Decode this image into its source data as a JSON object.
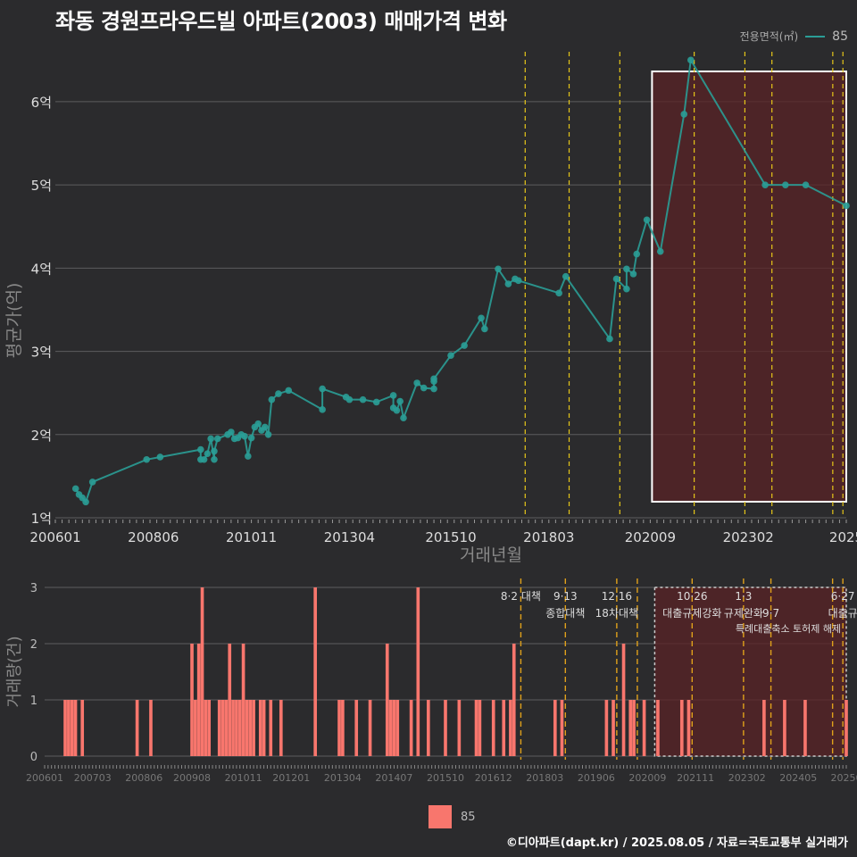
{
  "title": "좌동 경원프라우드빌 아파트(2003) 매매가격 변화",
  "legend": {
    "title": "전용면적(㎡)",
    "series": "85"
  },
  "footer": "©디아파트(dapt.kr) / 2025.08.05 / 자료=국토교통부 실거래가",
  "colors": {
    "line": "#2a9d96",
    "bar": "#f8766d",
    "policy_line": "#e6c619",
    "policy_line_bottom": "#e0a11b",
    "highlight": "#5a2325"
  },
  "chart_data": [
    {
      "type": "line",
      "ylabel": "평균가(억)",
      "xlabel": "거래년월",
      "ylim": [
        1,
        6.6
      ],
      "yticks": [
        1,
        2,
        3,
        4,
        5,
        6
      ],
      "ytick_labels": [
        "1억",
        "2억",
        "3억",
        "4억",
        "5억",
        "6억"
      ],
      "xlim": [
        "2006-01",
        "2025-07"
      ],
      "xticks": [
        "2006-01",
        "2008-06",
        "2010-11",
        "2013-04",
        "2015-10",
        "2018-03",
        "2020-09",
        "2023-02",
        "2025-07"
      ],
      "xtick_labels": [
        "200601",
        "200806",
        "201011",
        "201304",
        "201510",
        "201803",
        "202009",
        "202302",
        "2025"
      ],
      "policy_lines": [
        "2017-08",
        "2018-09",
        "2019-12",
        "2021-10",
        "2023-01",
        "2023-09",
        "2025-03",
        "2025-06"
      ],
      "highlight_range": [
        "2020-09",
        "2025-07"
      ],
      "series": [
        {
          "name": "85",
          "points": [
            [
              "2006-07",
              1.35
            ],
            [
              "2006-08",
              1.28
            ],
            [
              "2006-09",
              1.24
            ],
            [
              "2006-10",
              1.19
            ],
            [
              "2006-12",
              1.43
            ],
            [
              "2008-04",
              1.7
            ],
            [
              "2008-08",
              1.73
            ],
            [
              "2009-08",
              1.82
            ],
            [
              "2009-08",
              1.7
            ],
            [
              "2009-09",
              1.7
            ],
            [
              "2009-10",
              1.77
            ],
            [
              "2009-11",
              1.95
            ],
            [
              "2009-12",
              1.7
            ],
            [
              "2009-12",
              1.8
            ],
            [
              "2010-01",
              1.95
            ],
            [
              "2010-04",
              2.0
            ],
            [
              "2010-05",
              2.03
            ],
            [
              "2010-06",
              1.95
            ],
            [
              "2010-07",
              1.96
            ],
            [
              "2010-08",
              2.0
            ],
            [
              "2010-09",
              1.98
            ],
            [
              "2010-10",
              1.74
            ],
            [
              "2010-11",
              1.96
            ],
            [
              "2010-12",
              2.09
            ],
            [
              "2011-01",
              2.13
            ],
            [
              "2011-02",
              2.05
            ],
            [
              "2011-03",
              2.09
            ],
            [
              "2011-04",
              2.0
            ],
            [
              "2011-05",
              2.42
            ],
            [
              "2011-07",
              2.49
            ],
            [
              "2011-10",
              2.53
            ],
            [
              "2012-08",
              2.3
            ],
            [
              "2012-08",
              2.55
            ],
            [
              "2013-03",
              2.45
            ],
            [
              "2013-04",
              2.42
            ],
            [
              "2013-08",
              2.42
            ],
            [
              "2013-12",
              2.39
            ],
            [
              "2014-05",
              2.47
            ],
            [
              "2014-05",
              2.32
            ],
            [
              "2014-06",
              2.29
            ],
            [
              "2014-07",
              2.4
            ],
            [
              "2014-08",
              2.2
            ],
            [
              "2014-12",
              2.62
            ],
            [
              "2015-02",
              2.56
            ],
            [
              "2015-05",
              2.55
            ],
            [
              "2015-05",
              2.64
            ],
            [
              "2015-05",
              2.67
            ],
            [
              "2015-10",
              2.95
            ],
            [
              "2016-02",
              3.07
            ],
            [
              "2016-07",
              3.4
            ],
            [
              "2016-08",
              3.27
            ],
            [
              "2016-12",
              3.99
            ],
            [
              "2017-03",
              3.81
            ],
            [
              "2017-05",
              3.87
            ],
            [
              "2017-06",
              3.85
            ],
            [
              "2018-06",
              3.7
            ],
            [
              "2018-08",
              3.9
            ],
            [
              "2019-09",
              3.15
            ],
            [
              "2019-11",
              3.87
            ],
            [
              "2020-02",
              3.75
            ],
            [
              "2020-02",
              3.99
            ],
            [
              "2020-04",
              3.93
            ],
            [
              "2020-05",
              4.17
            ],
            [
              "2020-08",
              4.58
            ],
            [
              "2020-12",
              4.2
            ],
            [
              "2021-07",
              5.85
            ],
            [
              "2021-09",
              6.5
            ],
            [
              "2023-07",
              5.0
            ],
            [
              "2024-01",
              5.0
            ],
            [
              "2024-07",
              5.0
            ],
            [
              "2025-07",
              4.75
            ]
          ]
        }
      ]
    },
    {
      "type": "bar",
      "ylabel": "거래량(건)",
      "ylim": [
        0,
        3
      ],
      "yticks": [
        0,
        1,
        2,
        3
      ],
      "xlim": [
        "2006-01",
        "2025-07"
      ],
      "xticks": [
        "2006-01",
        "2007-03",
        "2008-06",
        "2009-08",
        "2010-11",
        "2012-01",
        "2013-04",
        "2014-07",
        "2015-10",
        "2016-12",
        "2018-03",
        "2019-06",
        "2020-09",
        "2021-11",
        "2023-02",
        "2024-05",
        "2025-07"
      ],
      "xtick_labels": [
        "200601",
        "200703",
        "200806",
        "200908",
        "201011",
        "201201",
        "201304",
        "201407",
        "201510",
        "201612",
        "201803",
        "201906",
        "202009",
        "202111",
        "202302",
        "202405",
        "20250"
      ],
      "policy_lines": [
        "2017-08",
        "2018-09",
        "2019-12",
        "2020-06",
        "2021-10",
        "2023-01",
        "2023-09",
        "2025-03",
        "2025-06"
      ],
      "policy_labels": [
        {
          "date": "2017-08",
          "line1": "8·2 대책",
          "line2": ""
        },
        {
          "date": "2018-09",
          "line1": "9·13",
          "line2": "종합대책"
        },
        {
          "date": "2019-12",
          "line1": "12·16",
          "line2": "18차대책"
        },
        {
          "date": "2021-10",
          "line1": "10·26",
          "line2": "대출규제강화"
        },
        {
          "date": "2023-01",
          "line1": "1·3",
          "line2": "규제완화"
        },
        {
          "date": "2023-09",
          "line1": "",
          "line2": "9·7"
        },
        {
          "date": "2025-06",
          "line1": "6·27",
          "line2": "대출규"
        }
      ],
      "policy_label_line3": "특례대출축소 토허제 해제",
      "highlight_range": [
        "2020-09",
        "2025-07"
      ],
      "series": [
        {
          "name": "85",
          "bars": [
            [
              "2006-07",
              1
            ],
            [
              "2006-08",
              1
            ],
            [
              "2006-09",
              1
            ],
            [
              "2006-10",
              1
            ],
            [
              "2006-12",
              1
            ],
            [
              "2008-04",
              1
            ],
            [
              "2008-08",
              1
            ],
            [
              "2009-08",
              2
            ],
            [
              "2009-09",
              1
            ],
            [
              "2009-10",
              2
            ],
            [
              "2009-11",
              3
            ],
            [
              "2009-12",
              1
            ],
            [
              "2010-01",
              1
            ],
            [
              "2010-04",
              1
            ],
            [
              "2010-05",
              1
            ],
            [
              "2010-06",
              1
            ],
            [
              "2010-07",
              2
            ],
            [
              "2010-08",
              1
            ],
            [
              "2010-09",
              1
            ],
            [
              "2010-10",
              1
            ],
            [
              "2010-11",
              2
            ],
            [
              "2010-12",
              1
            ],
            [
              "2011-01",
              1
            ],
            [
              "2011-02",
              1
            ],
            [
              "2011-04",
              1
            ],
            [
              "2011-05",
              1
            ],
            [
              "2011-07",
              1
            ],
            [
              "2011-10",
              1
            ],
            [
              "2012-08",
              3
            ],
            [
              "2013-03",
              1
            ],
            [
              "2013-04",
              1
            ],
            [
              "2013-08",
              1
            ],
            [
              "2013-12",
              1
            ],
            [
              "2014-05",
              2
            ],
            [
              "2014-06",
              1
            ],
            [
              "2014-07",
              1
            ],
            [
              "2014-08",
              1
            ],
            [
              "2014-12",
              1
            ],
            [
              "2015-02",
              3
            ],
            [
              "2015-05",
              1
            ],
            [
              "2015-10",
              1
            ],
            [
              "2016-02",
              1
            ],
            [
              "2016-07",
              1
            ],
            [
              "2016-08",
              1
            ],
            [
              "2016-12",
              1
            ],
            [
              "2017-03",
              1
            ],
            [
              "2017-05",
              1
            ],
            [
              "2017-06",
              2
            ],
            [
              "2018-06",
              1
            ],
            [
              "2018-08",
              1
            ],
            [
              "2019-09",
              1
            ],
            [
              "2019-11",
              1
            ],
            [
              "2020-02",
              2
            ],
            [
              "2020-04",
              1
            ],
            [
              "2020-05",
              1
            ],
            [
              "2020-08",
              1
            ],
            [
              "2020-12",
              1
            ],
            [
              "2021-07",
              1
            ],
            [
              "2021-09",
              1
            ],
            [
              "2023-07",
              1
            ],
            [
              "2024-01",
              1
            ],
            [
              "2024-07",
              1
            ],
            [
              "2025-07",
              1
            ]
          ]
        }
      ]
    }
  ]
}
